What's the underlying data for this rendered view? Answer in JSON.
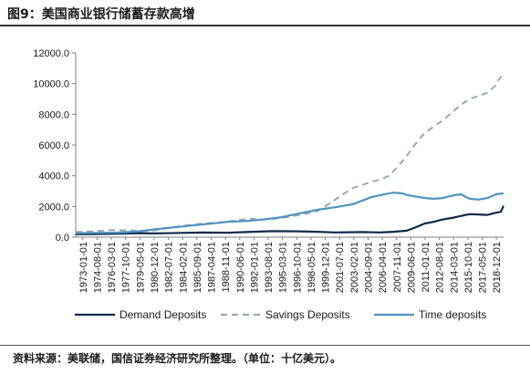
{
  "page": {
    "title": "图9：美国商业银行储蓄存款高增",
    "source": "资料来源：美联储，国信证券经济研究所整理。（单位：十亿美元）。"
  },
  "chart_data": {
    "type": "line",
    "title": "",
    "xlabel": "",
    "ylabel": "",
    "ylim": [
      0,
      12000
    ],
    "yticks": [
      "0.0",
      "2000.0",
      "4000.0",
      "6000.0",
      "8000.0",
      "10000.0",
      "12000.0"
    ],
    "ytick_values": [
      0,
      2000,
      4000,
      6000,
      8000,
      10000,
      12000
    ],
    "x_tick_labels": [
      "1973-01-01",
      "1974-08-01",
      "1976-03-01",
      "1977-10-01",
      "1979-05-01",
      "1980-12-01",
      "1982-07-01",
      "1984-02-01",
      "1985-09-01",
      "1987-04-01",
      "1988-11-01",
      "1990-06-01",
      "1992-01-01",
      "1993-08-01",
      "1995-03-01",
      "1996-10-01",
      "1998-05-01",
      "1999-12-01",
      "2001-07-01",
      "2003-02-01",
      "2004-09-01",
      "2006-04-01",
      "2007-11-01",
      "2009-06-01",
      "2011-01-01",
      "2012-08-01",
      "2014-03-01",
      "2015-10-01",
      "2017-05-01",
      "2018-12-01"
    ],
    "x_range": [
      1973.0,
      2020.8
    ],
    "grid": false,
    "legend_position": "bottom",
    "series": [
      {
        "name": "Demand Deposits",
        "color": "#0f2a4a",
        "dash": "solid",
        "points": [
          [
            1973.0,
            190
          ],
          [
            1975.0,
            200
          ],
          [
            1978.0,
            230
          ],
          [
            1980.0,
            260
          ],
          [
            1982.0,
            250
          ],
          [
            1985.0,
            280
          ],
          [
            1987.0,
            300
          ],
          [
            1990.0,
            290
          ],
          [
            1992.0,
            330
          ],
          [
            1995.0,
            390
          ],
          [
            1998.0,
            380
          ],
          [
            2000.0,
            350
          ],
          [
            2002.0,
            310
          ],
          [
            2005.0,
            330
          ],
          [
            2007.0,
            310
          ],
          [
            2008.5,
            350
          ],
          [
            2010.0,
            420
          ],
          [
            2011.0,
            650
          ],
          [
            2012.0,
            890
          ],
          [
            2013.0,
            1000
          ],
          [
            2014.0,
            1150
          ],
          [
            2015.0,
            1250
          ],
          [
            2016.0,
            1380
          ],
          [
            2017.0,
            1500
          ],
          [
            2018.0,
            1480
          ],
          [
            2019.0,
            1450
          ],
          [
            2020.0,
            1600
          ],
          [
            2020.5,
            1650
          ],
          [
            2020.8,
            2050
          ]
        ]
      },
      {
        "name": "Savings Deposits",
        "color": "#9aa8b4",
        "dash": "dashed",
        "points": [
          [
            1973.0,
            330
          ],
          [
            1975.0,
            380
          ],
          [
            1977.0,
            470
          ],
          [
            1979.0,
            440
          ],
          [
            1980.5,
            400
          ],
          [
            1982.0,
            460
          ],
          [
            1984.0,
            660
          ],
          [
            1986.0,
            820
          ],
          [
            1987.5,
            900
          ],
          [
            1989.0,
            950
          ],
          [
            1991.0,
            1100
          ],
          [
            1992.5,
            1200
          ],
          [
            1994.0,
            1150
          ],
          [
            1996.0,
            1250
          ],
          [
            1998.0,
            1450
          ],
          [
            2000.0,
            1700
          ],
          [
            2001.0,
            2050
          ],
          [
            2002.0,
            2450
          ],
          [
            2003.0,
            2850
          ],
          [
            2004.0,
            3200
          ],
          [
            2005.0,
            3400
          ],
          [
            2006.0,
            3600
          ],
          [
            2007.0,
            3750
          ],
          [
            2008.0,
            4000
          ],
          [
            2009.0,
            4600
          ],
          [
            2010.0,
            5300
          ],
          [
            2011.0,
            6100
          ],
          [
            2012.0,
            6800
          ],
          [
            2013.0,
            7200
          ],
          [
            2014.0,
            7600
          ],
          [
            2015.0,
            8100
          ],
          [
            2016.0,
            8600
          ],
          [
            2017.0,
            9000
          ],
          [
            2018.0,
            9200
          ],
          [
            2019.0,
            9400
          ],
          [
            2019.8,
            9800
          ],
          [
            2020.3,
            10300
          ],
          [
            2020.8,
            10600
          ]
        ]
      },
      {
        "name": "Time deposits",
        "color": "#4f93c1",
        "dash": "solid",
        "points": [
          [
            1973.0,
            260
          ],
          [
            1975.0,
            280
          ],
          [
            1978.0,
            300
          ],
          [
            1980.0,
            380
          ],
          [
            1982.0,
            520
          ],
          [
            1984.0,
            640
          ],
          [
            1986.0,
            760
          ],
          [
            1988.0,
            880
          ],
          [
            1990.0,
            1000
          ],
          [
            1992.0,
            1050
          ],
          [
            1994.0,
            1150
          ],
          [
            1996.0,
            1300
          ],
          [
            1998.0,
            1550
          ],
          [
            2000.0,
            1780
          ],
          [
            2002.0,
            1950
          ],
          [
            2004.0,
            2150
          ],
          [
            2006.0,
            2600
          ],
          [
            2007.5,
            2800
          ],
          [
            2008.5,
            2900
          ],
          [
            2009.5,
            2850
          ],
          [
            2010.0,
            2750
          ],
          [
            2011.0,
            2650
          ],
          [
            2012.0,
            2550
          ],
          [
            2013.0,
            2500
          ],
          [
            2014.0,
            2550
          ],
          [
            2015.0,
            2700
          ],
          [
            2016.0,
            2800
          ],
          [
            2017.0,
            2500
          ],
          [
            2018.0,
            2450
          ],
          [
            2019.0,
            2550
          ],
          [
            2020.0,
            2800
          ],
          [
            2020.8,
            2850
          ]
        ]
      }
    ]
  }
}
